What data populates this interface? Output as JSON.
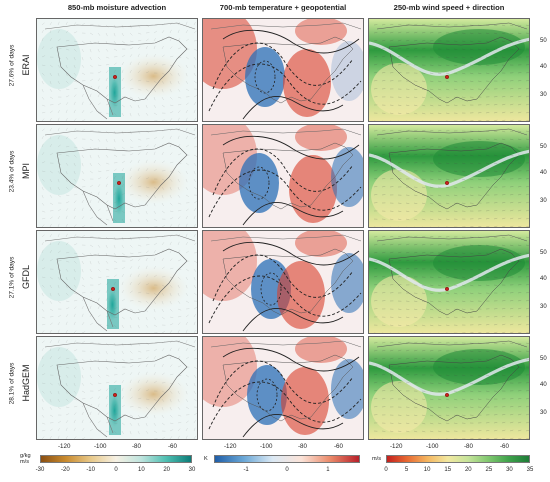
{
  "columns": [
    {
      "title": "850-mb moisture advection"
    },
    {
      "title": "700-mb temperature + geopotential"
    },
    {
      "title": "250-mb wind speed + direction"
    }
  ],
  "rows": [
    {
      "model": "ERAI",
      "pct": "27.6% of days"
    },
    {
      "model": "MPI",
      "pct": "23.4% of days"
    },
    {
      "model": "GFDL",
      "pct": "27.1% of days"
    },
    {
      "model": "HadGEM",
      "pct": "28.1% of days"
    }
  ],
  "lat_ticks": [
    "50",
    "40",
    "30"
  ],
  "lon_ticks": [
    "-120",
    "-100",
    "-80",
    "-60"
  ],
  "colorbars": [
    {
      "unit_line1": "g/kg",
      "unit_line2": "m/s",
      "ticks": [
        "-30",
        "-20",
        "-10",
        "0",
        "10",
        "20",
        "30"
      ]
    },
    {
      "unit_line1": "K",
      "unit_line2": "",
      "ticks": [
        "-1",
        "0",
        "1"
      ]
    },
    {
      "unit_line1": "m/s",
      "unit_line2": "",
      "ticks": [
        "0",
        "5",
        "10",
        "15",
        "20",
        "25",
        "30",
        "35"
      ]
    }
  ],
  "colors": {
    "moisture_positive": "#1aa398",
    "moisture_negative": "#c98b2f",
    "temp_warm": "#d9402b",
    "temp_cold": "#2a6fb7",
    "wind_strong": "#2e9a3f",
    "wind_weak": "#f2e8a0",
    "site_marker": "#c8211b"
  }
}
